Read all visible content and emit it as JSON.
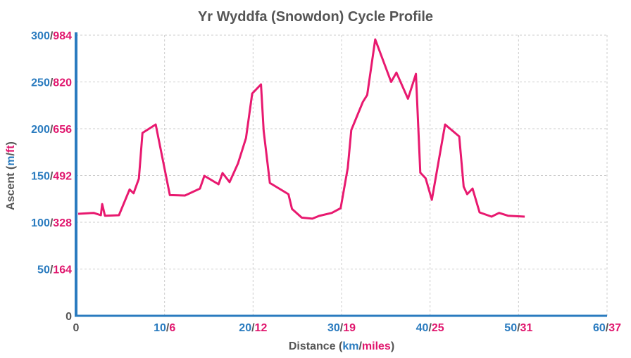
{
  "chart_data": {
    "type": "line",
    "title": "Yr Wyddfa (Snowdon) Cycle Profile",
    "xlabel": {
      "prefix": "Distance (",
      "unit1": "km",
      "sep": "/",
      "unit2": "miles",
      "suffix": ")"
    },
    "ylabel": {
      "prefix": "Ascent (",
      "unit1": "m",
      "sep": "/",
      "unit2": "ft",
      "suffix": ")"
    },
    "xlim": [
      0,
      60
    ],
    "ylim": [
      0,
      300
    ],
    "grid": true,
    "x_ticks": [
      {
        "primary": "0",
        "secondary": ""
      },
      {
        "primary": "10",
        "secondary": "6"
      },
      {
        "primary": "20",
        "secondary": "12"
      },
      {
        "primary": "30",
        "secondary": "19"
      },
      {
        "primary": "40",
        "secondary": "25"
      },
      {
        "primary": "50",
        "secondary": "31"
      },
      {
        "primary": "60",
        "secondary": "37"
      }
    ],
    "y_ticks": [
      {
        "primary": "0",
        "secondary": ""
      },
      {
        "primary": "50",
        "secondary": "164"
      },
      {
        "primary": "100",
        "secondary": "328"
      },
      {
        "primary": "150",
        "secondary": "492"
      },
      {
        "primary": "200",
        "secondary": "656"
      },
      {
        "primary": "250",
        "secondary": "820"
      },
      {
        "primary": "300",
        "secondary": "984"
      }
    ],
    "colors": {
      "primary": "#2a7bbf",
      "secondary": "#e0176e",
      "line": "#e8196f",
      "title": "#555555",
      "axis": "#2a7bbf"
    },
    "series": [
      {
        "x": [
          0.24,
          2.0,
          2.8,
          2.95,
          3.26,
          4.85,
          6.05,
          6.5,
          7.1,
          7.5,
          9.0,
          10.6,
          12.3,
          14.0,
          14.5,
          16.1,
          16.55,
          17.35,
          18.3,
          19.2,
          19.9,
          20.9,
          21.2,
          21.9,
          24.0,
          24.4,
          25.5,
          26.7,
          27.45,
          28.9,
          29.9,
          30.7,
          31.1,
          32.4,
          32.9,
          33.8,
          35.6,
          36.2,
          37.5,
          38.4,
          38.9,
          39.5,
          40.2,
          41.7,
          43.3,
          43.8,
          44.2,
          44.8,
          45.6,
          46.95,
          47.8,
          48.8,
          50.7
        ],
        "y": [
          109,
          110,
          107.5,
          119.5,
          107,
          107.5,
          135,
          131,
          146.6,
          195.5,
          204.5,
          129,
          128.6,
          136,
          149.6,
          140.6,
          152.6,
          142.9,
          163,
          190,
          237.6,
          247.4,
          197.7,
          142,
          130,
          114.3,
          105,
          103.8,
          106.8,
          110,
          115,
          158,
          198.5,
          228.6,
          236,
          295.5,
          250,
          260,
          232,
          258.6,
          153,
          147,
          124,
          204.5,
          191.7,
          138,
          130,
          136,
          110.5,
          106,
          110,
          107,
          106
        ]
      }
    ]
  }
}
